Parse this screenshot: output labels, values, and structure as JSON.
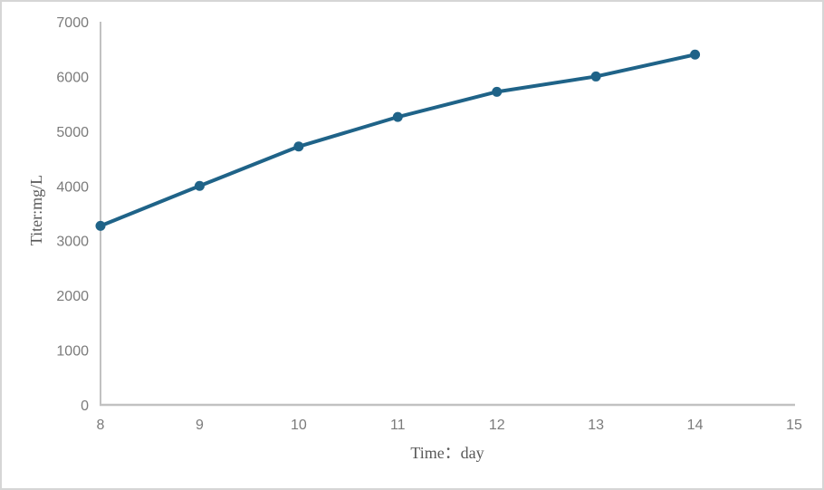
{
  "chart_data": {
    "type": "line",
    "title": "",
    "xlabel": "Time：day",
    "ylabel": "Titer:mg/L",
    "x": [
      8,
      9,
      10,
      11,
      12,
      13,
      14
    ],
    "series": [
      {
        "name": "Titer",
        "values": [
          3270,
          4000,
          4720,
          5260,
          5720,
          6000,
          6400
        ]
      }
    ],
    "xlim": [
      8,
      15
    ],
    "ylim": [
      0,
      7000
    ],
    "x_ticks": [
      8,
      9,
      10,
      11,
      12,
      13,
      14,
      15
    ],
    "y_ticks": [
      0,
      1000,
      2000,
      3000,
      4000,
      5000,
      6000,
      7000
    ],
    "grid": false,
    "legend_position": "none",
    "marker": "circle"
  },
  "colors": {
    "line": "#1f6388",
    "marker": "#1f6388",
    "axis_line": "#c1c1c1",
    "tick_text": "#7b7b7b",
    "axis_title_text": "#595959",
    "frame_border": "#d6d6d6",
    "background": "#ffffff"
  }
}
